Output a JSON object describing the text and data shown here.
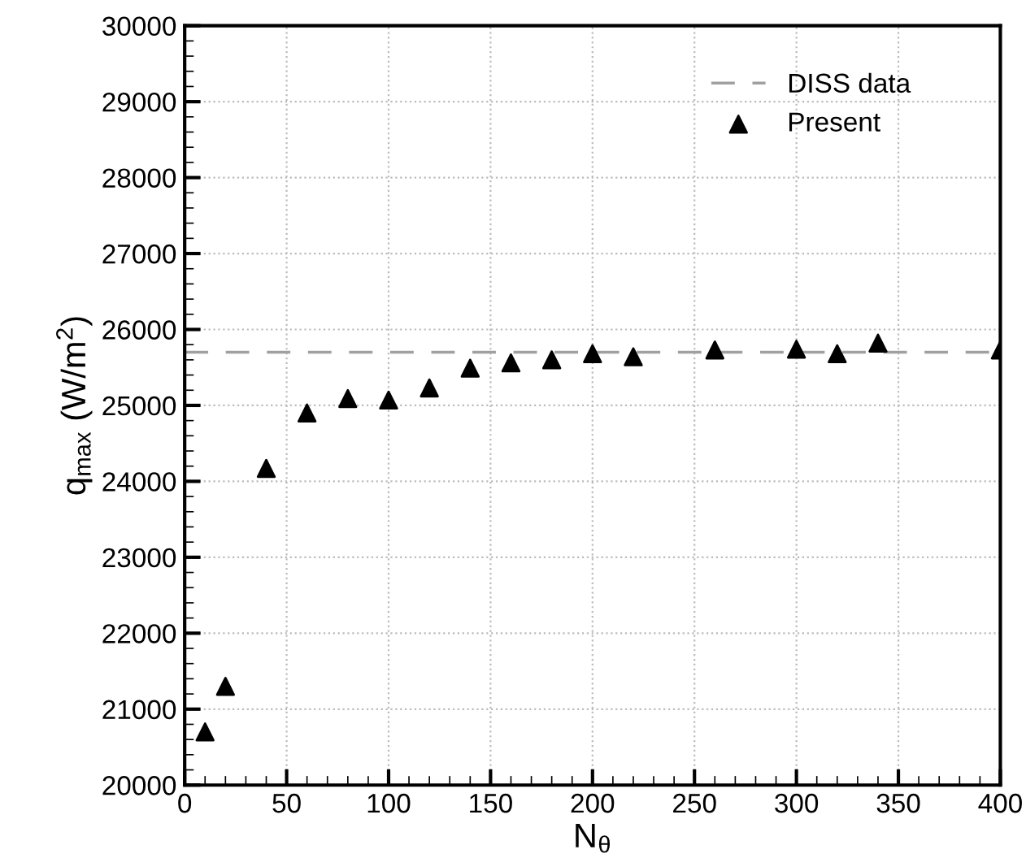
{
  "chart_data": {
    "type": "scatter",
    "xlabel": "N$_{θ}$",
    "ylabel": "q$_{max}$ (W/m$^{2}$)",
    "xlim": [
      0,
      400
    ],
    "xticks": [
      0,
      50,
      100,
      150,
      200,
      250,
      300,
      350,
      400
    ],
    "ylim": [
      20000,
      30000
    ],
    "yticks": [
      20000,
      21000,
      22000,
      23000,
      24000,
      25000,
      26000,
      27000,
      28000,
      29000,
      30000
    ],
    "series": [
      {
        "name": "Present",
        "color": "#000000",
        "marker": "triangle",
        "x": [
          10,
          20,
          40,
          60,
          80,
          100,
          120,
          140,
          160,
          180,
          200,
          220,
          260,
          300,
          320,
          340,
          400
        ],
        "values": [
          20700,
          21300,
          24170,
          24900,
          25090,
          25070,
          25230,
          25490,
          25560,
          25600,
          25680,
          25640,
          25730,
          25740,
          25680,
          25820,
          25730
        ]
      }
    ],
    "ref_lines": [
      {
        "axis": "y",
        "value": 25700,
        "label": "DISS data",
        "color": "#a0a0a0",
        "line_style": "dashed"
      }
    ],
    "grid": true,
    "legend": "top right"
  }
}
